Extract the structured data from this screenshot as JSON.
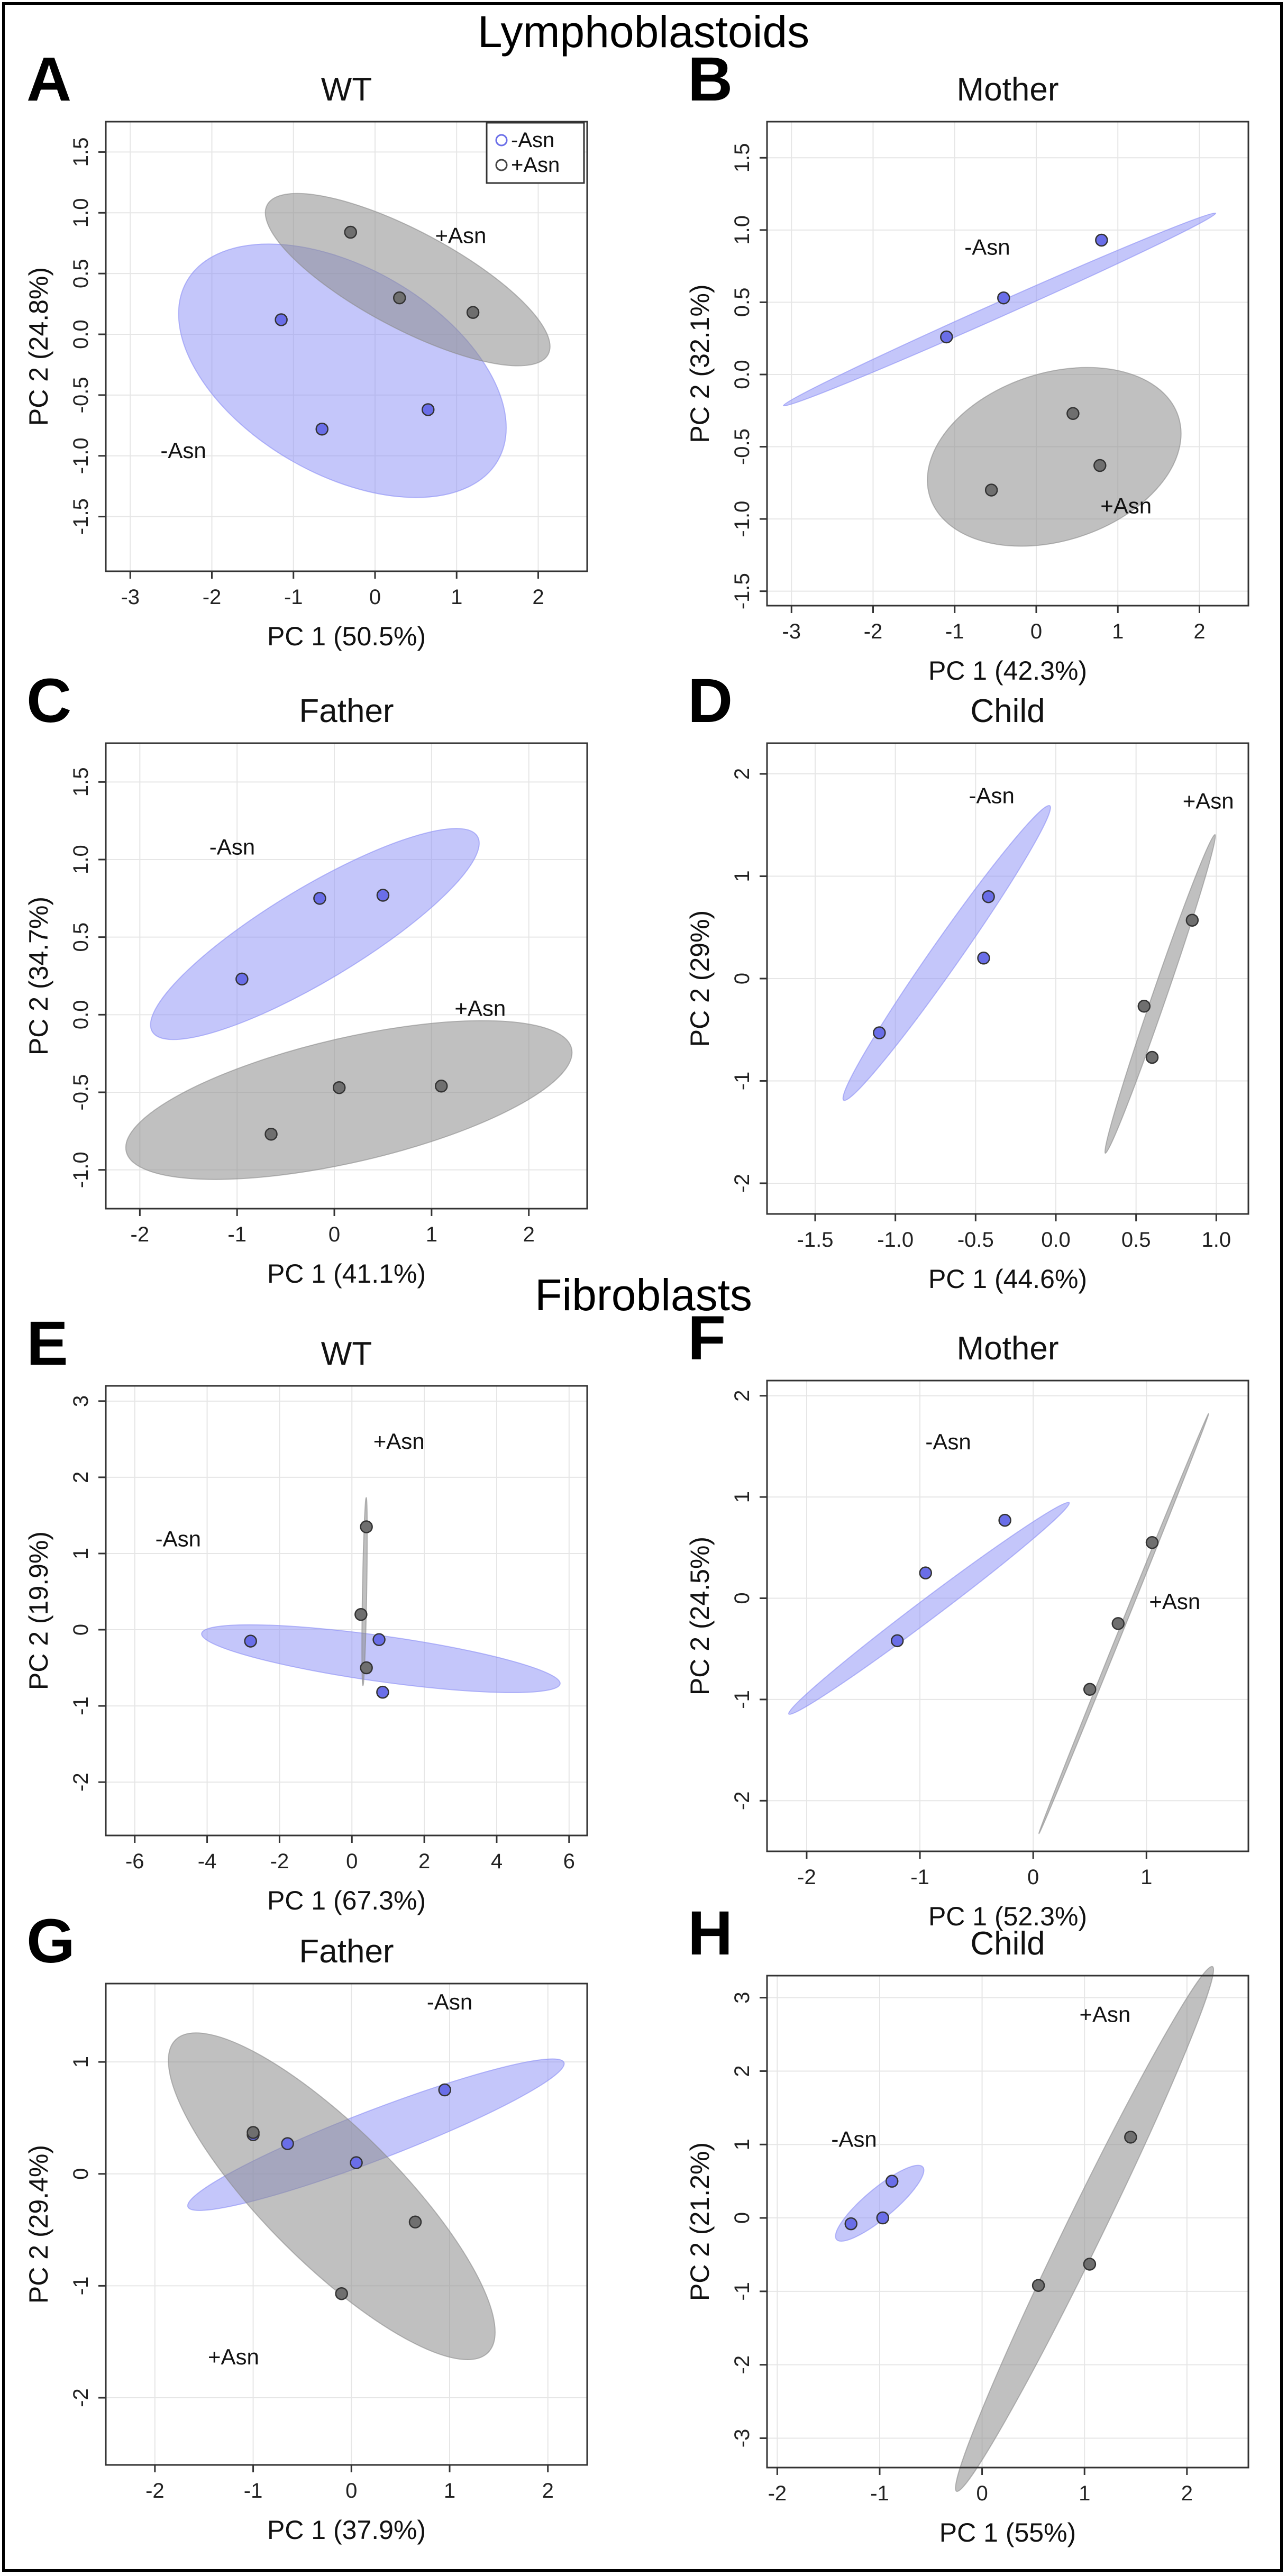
{
  "sections": {
    "top": "Lymphoblastoids",
    "bottom": "Fibroblasts"
  },
  "colors": {
    "minus": "#8a8ef5",
    "minus_point": "#6a6ee8",
    "plus": "#8c8c8c",
    "plus_point": "#6f6f6f"
  },
  "legend": {
    "minus": "-Asn",
    "plus": "+Asn"
  },
  "chart_data": [
    {
      "panel": "A",
      "type": "scatter",
      "group": "Lymphoblastoids",
      "title": "WT",
      "xlabel": "PC 1 (50.5%)",
      "ylabel": "PC 2 (24.8%)",
      "xlim": [
        -3.3,
        2.6
      ],
      "ylim": [
        -1.95,
        1.75
      ],
      "xticks": [
        -3,
        -2,
        -1,
        0,
        1,
        2
      ],
      "yticks": [
        -1.5,
        -1.0,
        -0.5,
        0.0,
        0.5,
        1.0,
        1.5
      ],
      "ytick_labels": [
        "-1.5",
        "-1.0",
        "-0.5",
        "0.0",
        "0.5",
        "1.0",
        "1.5"
      ],
      "legend": true,
      "series": [
        {
          "name": "-Asn",
          "points": [
            [
              -1.15,
              0.12
            ],
            [
              -0.65,
              -0.78
            ],
            [
              0.65,
              -0.62
            ]
          ],
          "ellipse": {
            "cx": -0.4,
            "cy": -0.3,
            "rx": 2.2,
            "ry": 0.85,
            "angle": -30
          },
          "label": {
            "text": "-Asn",
            "x": -2.35,
            "y": -0.97
          }
        },
        {
          "name": "+Asn",
          "points": [
            [
              -0.3,
              0.84
            ],
            [
              0.3,
              0.3
            ],
            [
              1.2,
              0.18
            ]
          ],
          "ellipse": {
            "cx": 0.4,
            "cy": 0.45,
            "rx": 1.95,
            "ry": 0.4,
            "angle": -28
          },
          "label": {
            "text": "+Asn",
            "x": 1.05,
            "y": 0.8
          }
        }
      ]
    },
    {
      "panel": "B",
      "type": "scatter",
      "group": "Lymphoblastoids",
      "title": "Mother",
      "xlabel": "PC 1 (42.3%)",
      "ylabel": "PC 2 (32.1%)",
      "xlim": [
        -3.3,
        2.6
      ],
      "ylim": [
        -1.6,
        1.75
      ],
      "xticks": [
        -3,
        -2,
        -1,
        0,
        1,
        2
      ],
      "yticks": [
        -1.5,
        -1.0,
        -0.5,
        0.0,
        0.5,
        1.0,
        1.5
      ],
      "ytick_labels": [
        "-1.5",
        "-1.0",
        "-0.5",
        "0.0",
        "0.5",
        "1.0",
        "1.5"
      ],
      "legend": false,
      "series": [
        {
          "name": "-Asn",
          "points": [
            [
              -1.1,
              0.26
            ],
            [
              -0.4,
              0.53
            ],
            [
              0.8,
              0.93
            ]
          ],
          "ellipse": {
            "cx": -0.45,
            "cy": 0.45,
            "rx": 2.9,
            "ry": 0.05,
            "angle": 24
          },
          "label": {
            "text": "-Asn",
            "x": -0.6,
            "y": 0.87
          }
        },
        {
          "name": "+Asn",
          "points": [
            [
              -0.55,
              -0.8
            ],
            [
              0.45,
              -0.27
            ],
            [
              0.78,
              -0.63
            ]
          ],
          "ellipse": {
            "cx": 0.22,
            "cy": -0.57,
            "rx": 1.6,
            "ry": 0.58,
            "angle": 18
          },
          "label": {
            "text": "+Asn",
            "x": 1.1,
            "y": -0.92
          }
        }
      ]
    },
    {
      "panel": "C",
      "type": "scatter",
      "group": "Lymphoblastoids",
      "title": "Father",
      "xlabel": "PC 1 (41.1%)",
      "ylabel": "PC 2 (34.7%)",
      "xlim": [
        -2.35,
        2.6
      ],
      "ylim": [
        -1.25,
        1.75
      ],
      "xticks": [
        -2,
        -1,
        0,
        1,
        2
      ],
      "yticks": [
        -1.0,
        -0.5,
        0.0,
        0.5,
        1.0,
        1.5
      ],
      "ytick_labels": [
        "-1.0",
        "-0.5",
        "0.0",
        "0.5",
        "1.0",
        "1.5"
      ],
      "legend": false,
      "series": [
        {
          "name": "-Asn",
          "points": [
            [
              -0.95,
              0.23
            ],
            [
              -0.15,
              0.75
            ],
            [
              0.5,
              0.77
            ]
          ],
          "ellipse": {
            "cx": -0.2,
            "cy": 0.52,
            "rx": 1.95,
            "ry": 0.3,
            "angle": 31
          },
          "label": {
            "text": "-Asn",
            "x": -1.05,
            "y": 1.07
          }
        },
        {
          "name": "+Asn",
          "points": [
            [
              -0.65,
              -0.77
            ],
            [
              0.05,
              -0.47
            ],
            [
              1.1,
              -0.46
            ]
          ],
          "ellipse": {
            "cx": 0.15,
            "cy": -0.55,
            "rx": 2.35,
            "ry": 0.4,
            "angle": 13
          },
          "label": {
            "text": "+Asn",
            "x": 1.5,
            "y": 0.03
          }
        }
      ]
    },
    {
      "panel": "D",
      "type": "scatter",
      "group": "Lymphoblastoids",
      "title": "Child",
      "xlabel": "PC 1 (44.6%)",
      "ylabel": "PC 2 (29%)",
      "xlim": [
        -1.8,
        1.2
      ],
      "ylim": [
        -2.3,
        2.3
      ],
      "xticks": [
        -1.5,
        -1.0,
        -0.5,
        0.0,
        0.5,
        1.0
      ],
      "yticks": [
        -2,
        -1,
        0,
        1,
        2
      ],
      "xtick_labels": [
        "-1.5",
        "-1.0",
        "-0.5",
        "0.0",
        "0.5",
        "1.0"
      ],
      "legend": false,
      "series": [
        {
          "name": "-Asn",
          "points": [
            [
              -1.1,
              -0.53
            ],
            [
              -0.45,
              0.2
            ],
            [
              -0.42,
              0.8
            ]
          ],
          "ellipse": {
            "cx": -0.68,
            "cy": 0.25,
            "rx": 1.12,
            "ry": 0.14,
            "angle": 55
          },
          "label": {
            "text": "-Asn",
            "x": -0.4,
            "y": 1.77
          }
        },
        {
          "name": "+Asn",
          "points": [
            [
              0.55,
              -0.27
            ],
            [
              0.6,
              -0.77
            ],
            [
              0.85,
              0.57
            ]
          ],
          "ellipse": {
            "cx": 0.65,
            "cy": -0.15,
            "rx": 1.05,
            "ry": 0.068,
            "angle": 71
          },
          "label": {
            "text": "+Asn",
            "x": 0.95,
            "y": 1.72
          }
        }
      ]
    },
    {
      "panel": "E",
      "type": "scatter",
      "group": "Fibroblasts",
      "title": "WT",
      "xlabel": "PC 1 (67.3%)",
      "ylabel": "PC 2 (19.9%)",
      "xlim": [
        -6.8,
        6.5
      ],
      "ylim": [
        -2.7,
        3.2
      ],
      "xticks": [
        -6,
        -4,
        -2,
        0,
        2,
        4,
        6
      ],
      "yticks": [
        -2,
        -1,
        0,
        1,
        2,
        3
      ],
      "legend": false,
      "series": [
        {
          "name": "-Asn",
          "points": [
            [
              -2.8,
              -0.15
            ],
            [
              0.75,
              -0.13
            ],
            [
              0.85,
              -0.82
            ]
          ],
          "ellipse": {
            "cx": 0.8,
            "cy": -0.38,
            "rx": 5.0,
            "ry": 0.3,
            "angle": -8
          },
          "label": {
            "text": "-Asn",
            "x": -4.8,
            "y": 1.17
          }
        },
        {
          "name": "+Asn",
          "points": [
            [
              0.4,
              1.35
            ],
            [
              0.25,
              0.2
            ],
            [
              0.4,
              -0.5
            ]
          ],
          "ellipse": {
            "cx": 0.35,
            "cy": 0.5,
            "rx": 2.6,
            "ry": 0.009,
            "angle": 89
          },
          "label": {
            "text": "+Asn",
            "x": 1.3,
            "y": 2.45
          }
        }
      ]
    },
    {
      "panel": "F",
      "type": "scatter",
      "group": "Fibroblasts",
      "title": "Mother",
      "xlabel": "PC 1 (52.3%)",
      "ylabel": "PC 2 (24.5%)",
      "xlim": [
        -2.35,
        1.9
      ],
      "ylim": [
        -2.5,
        2.15
      ],
      "xticks": [
        -2,
        -1,
        0,
        1
      ],
      "yticks": [
        -2,
        -1,
        0,
        1,
        2
      ],
      "legend": false,
      "series": [
        {
          "name": "-Asn",
          "points": [
            [
              -1.2,
              -0.42
            ],
            [
              -0.95,
              0.25
            ],
            [
              -0.25,
              0.77
            ]
          ],
          "ellipse": {
            "cx": -0.92,
            "cy": -0.1,
            "rx": 1.55,
            "ry": 0.1,
            "angle": 37
          },
          "label": {
            "text": "-Asn",
            "x": -0.75,
            "y": 1.53
          }
        },
        {
          "name": "+Asn",
          "points": [
            [
              0.5,
              -0.9
            ],
            [
              0.75,
              -0.25
            ],
            [
              1.05,
              0.55
            ]
          ],
          "ellipse": {
            "cx": 0.8,
            "cy": -0.25,
            "rx": 2.0,
            "ry": 0.003,
            "angle": 68
          },
          "label": {
            "text": "+Asn",
            "x": 1.25,
            "y": -0.05
          }
        }
      ]
    },
    {
      "panel": "G",
      "type": "scatter",
      "group": "Fibroblasts",
      "title": "Father",
      "xlabel": "PC 1 (37.9%)",
      "ylabel": "PC 2 (29.4%)",
      "xlim": [
        -2.5,
        2.4
      ],
      "ylim": [
        -2.6,
        1.7
      ],
      "xticks": [
        -2,
        -1,
        0,
        1,
        2
      ],
      "yticks": [
        -2,
        -1,
        0,
        1
      ],
      "legend": false,
      "series": [
        {
          "name": "-Asn",
          "points": [
            [
              -1.0,
              0.35
            ],
            [
              -0.65,
              0.27
            ],
            [
              0.05,
              0.1
            ],
            [
              0.95,
              0.75
            ]
          ],
          "ellipse": {
            "cx": 0.25,
            "cy": 0.35,
            "rx": 2.05,
            "ry": 0.22,
            "angle": 21
          },
          "label": {
            "text": "-Asn",
            "x": 1.0,
            "y": 1.52
          }
        },
        {
          "name": "+Asn",
          "points": [
            [
              -1.0,
              0.37
            ],
            [
              0.65,
              -0.43
            ],
            [
              -0.1,
              -1.07
            ]
          ],
          "ellipse": {
            "cx": -0.2,
            "cy": -0.2,
            "rx": 2.25,
            "ry": 0.6,
            "angle": -45
          },
          "label": {
            "text": "+Asn",
            "x": -1.2,
            "y": -1.65
          }
        }
      ]
    },
    {
      "panel": "H",
      "type": "scatter",
      "group": "Fibroblasts",
      "title": "Child",
      "xlabel": "PC 1 (55%)",
      "ylabel": "PC 2 (21.2%)",
      "xlim": [
        -2.1,
        2.6
      ],
      "ylim": [
        -3.4,
        3.3
      ],
      "xticks": [
        -2,
        -1,
        0,
        1,
        2
      ],
      "yticks": [
        -3,
        -2,
        -1,
        0,
        1,
        2,
        3
      ],
      "legend": false,
      "series": [
        {
          "name": "-Asn",
          "points": [
            [
              -1.28,
              -0.08
            ],
            [
              -0.97,
              0.0
            ],
            [
              -0.88,
              0.5
            ]
          ],
          "ellipse": {
            "cx": -1.0,
            "cy": 0.2,
            "rx": 0.55,
            "ry": 0.2,
            "angle": 40
          },
          "label": {
            "text": "-Asn",
            "x": -1.25,
            "y": 1.05
          }
        },
        {
          "name": "+Asn",
          "points": [
            [
              0.55,
              -0.92
            ],
            [
              1.05,
              -0.63
            ],
            [
              1.45,
              1.1
            ]
          ],
          "ellipse": {
            "cx": 1.0,
            "cy": -0.15,
            "rx": 2.85,
            "ry": 0.25,
            "angle": 64
          },
          "label": {
            "text": "+Asn",
            "x": 1.2,
            "y": 2.75
          }
        }
      ]
    }
  ]
}
